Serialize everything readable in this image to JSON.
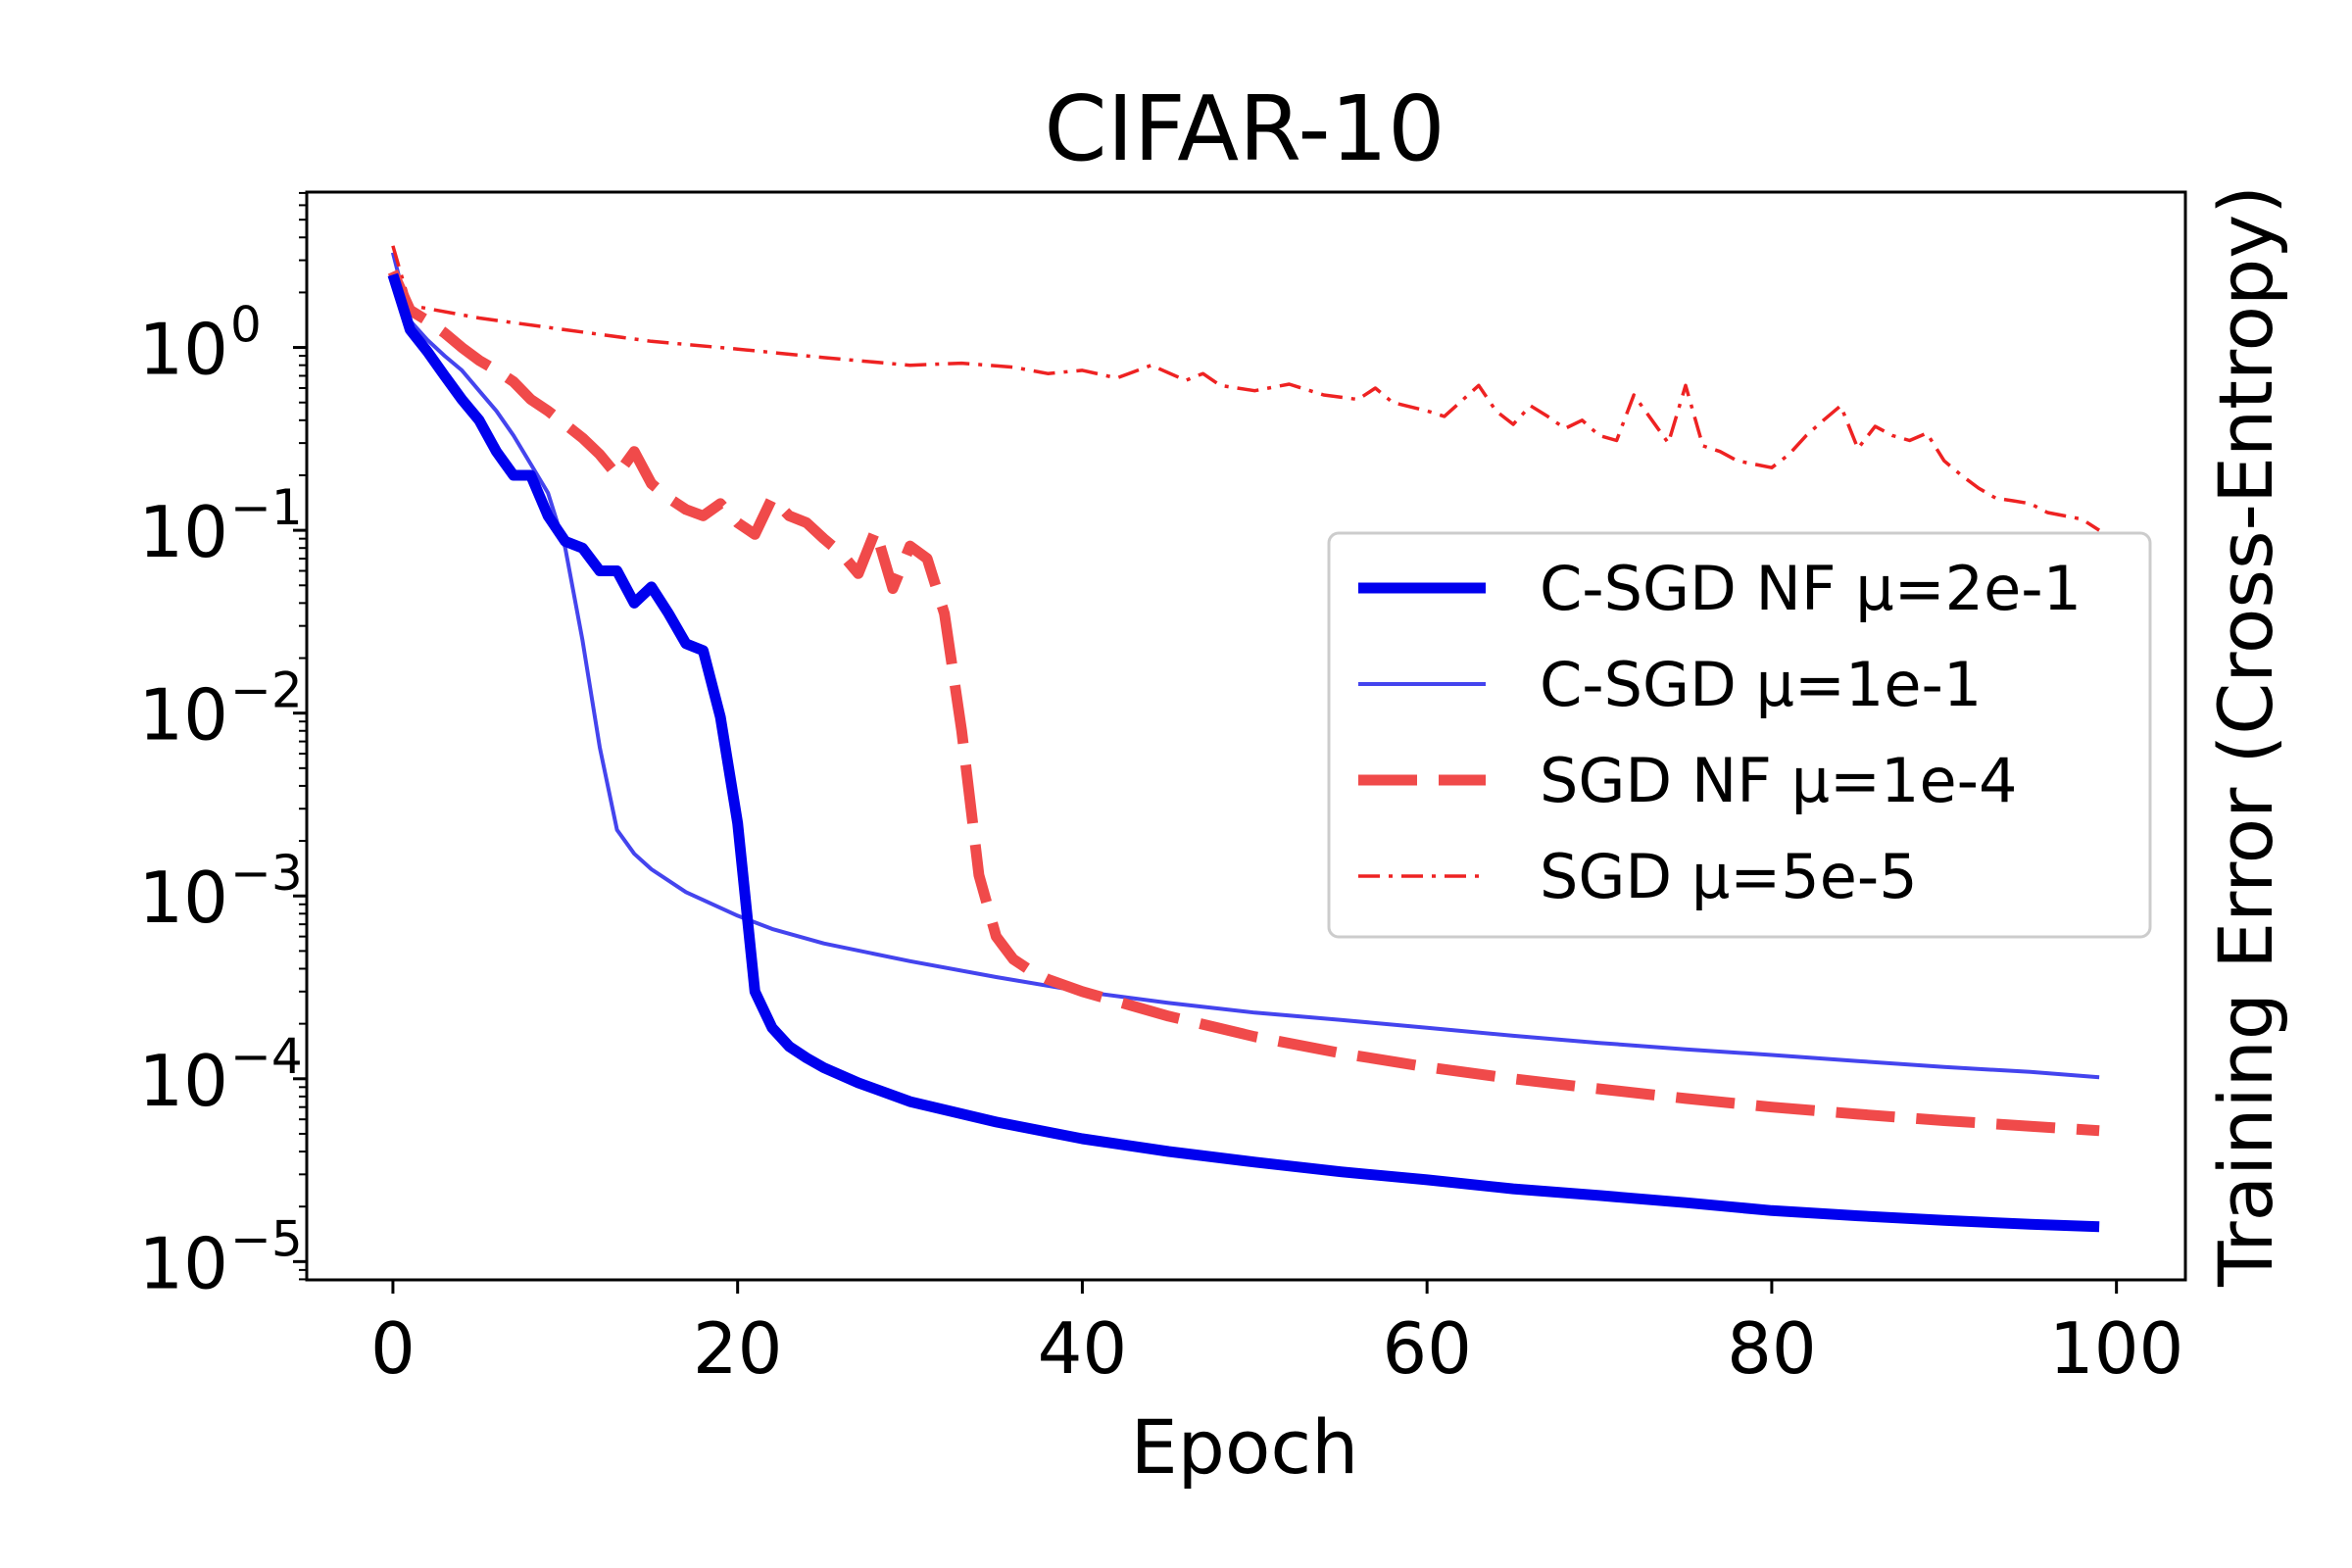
{
  "chart_data": {
    "type": "line",
    "title": "CIFAR-10",
    "xlabel": "Epoch",
    "ylabel": "Training Error (Cross-Entropy)",
    "xlim": [
      -5,
      104
    ],
    "ylim_log10": [
      -5.1,
      0.85
    ],
    "y_scale": "log",
    "grid": false,
    "legend_position": "center-right",
    "x_ticks": [
      0,
      20,
      40,
      60,
      80,
      100
    ],
    "y_ticks": [
      {
        "exp": 0,
        "base": "10",
        "sup": "0"
      },
      {
        "exp": -1,
        "base": "10",
        "sup": "−1"
      },
      {
        "exp": -2,
        "base": "10",
        "sup": "−2"
      },
      {
        "exp": -3,
        "base": "10",
        "sup": "−3"
      },
      {
        "exp": -4,
        "base": "10",
        "sup": "−4"
      },
      {
        "exp": -5,
        "base": "10",
        "sup": "−5"
      }
    ],
    "series": [
      {
        "name": "C-SGD NF μ=2e-1",
        "color": "#0000ee",
        "style": "solid-thick",
        "x": [
          0,
          1,
          2,
          3,
          4,
          5,
          6,
          7,
          8,
          9,
          10,
          11,
          12,
          13,
          14,
          15,
          16,
          17,
          18,
          19,
          20,
          21,
          22,
          23,
          24,
          25,
          27,
          30,
          35,
          40,
          45,
          50,
          55,
          60,
          65,
          70,
          75,
          80,
          85,
          90,
          95,
          99
        ],
        "y": [
          2.5,
          1.25,
          0.95,
          0.7,
          0.52,
          0.4,
          0.27,
          0.2,
          0.2,
          0.12,
          0.087,
          0.08,
          0.06,
          0.06,
          0.04,
          0.049,
          0.035,
          0.024,
          0.022,
          0.0095,
          0.0025,
          0.0003,
          0.00019,
          0.00015,
          0.00013,
          0.000115,
          9.5e-05,
          7.5e-05,
          5.8e-05,
          4.7e-05,
          4e-05,
          3.5e-05,
          3.1e-05,
          2.8e-05,
          2.5e-05,
          2.3e-05,
          2.1e-05,
          1.9e-05,
          1.78e-05,
          1.68e-05,
          1.6e-05,
          1.55e-05
        ]
      },
      {
        "name": "C-SGD μ=1e-1",
        "color": "#4444ee",
        "style": "solid-thin",
        "x": [
          0,
          1,
          2,
          3,
          4,
          5,
          6,
          7,
          8,
          9,
          10,
          11,
          12,
          13,
          14,
          15,
          17,
          20,
          22,
          25,
          30,
          35,
          40,
          45,
          50,
          55,
          60,
          65,
          70,
          75,
          80,
          85,
          90,
          95,
          99
        ],
        "y": [
          3.3,
          1.4,
          1.1,
          0.9,
          0.75,
          0.58,
          0.45,
          0.33,
          0.23,
          0.16,
          0.08,
          0.025,
          0.0065,
          0.0023,
          0.0017,
          0.0014,
          0.00105,
          0.00078,
          0.00066,
          0.00055,
          0.00044,
          0.00036,
          0.0003,
          0.00026,
          0.00023,
          0.00021,
          0.00019,
          0.000172,
          0.000157,
          0.000145,
          0.000135,
          0.000125,
          0.000116,
          0.000109,
          0.000102
        ]
      },
      {
        "name": "SGD NF μ=1e-4",
        "color": "#f04a4a",
        "style": "dashed-thick",
        "x": [
          0,
          1,
          2,
          3,
          4,
          5,
          6,
          7,
          8,
          9,
          10,
          11,
          12,
          13,
          14,
          15,
          16,
          17,
          18,
          19,
          20,
          21,
          22,
          23,
          24,
          25,
          26,
          27,
          28,
          29,
          30,
          31,
          32,
          33,
          34,
          35,
          36,
          37,
          38,
          40,
          45,
          50,
          55,
          60,
          65,
          70,
          75,
          80,
          85,
          90,
          95,
          99
        ],
        "y": [
          2.6,
          1.6,
          1.4,
          1.2,
          1.0,
          0.85,
          0.75,
          0.65,
          0.52,
          0.45,
          0.38,
          0.32,
          0.26,
          0.2,
          0.27,
          0.18,
          0.15,
          0.13,
          0.12,
          0.14,
          0.11,
          0.095,
          0.15,
          0.12,
          0.11,
          0.09,
          0.075,
          0.058,
          0.1,
          0.048,
          0.082,
          0.07,
          0.035,
          0.008,
          0.0013,
          0.0006,
          0.00045,
          0.00039,
          0.00035,
          0.0003,
          0.00022,
          0.00017,
          0.000138,
          0.000116,
          0.0001,
          8.8e-05,
          7.8e-05,
          7e-05,
          6.4e-05,
          5.9e-05,
          5.5e-05,
          5.2e-05
        ]
      },
      {
        "name": "SGD μ=5e-5",
        "color": "#ee2222",
        "style": "dashdot-thin",
        "x": [
          0,
          1,
          5,
          10,
          15,
          20,
          25,
          30,
          33,
          36,
          38,
          40,
          42,
          44,
          46,
          47,
          48,
          50,
          52,
          54,
          56,
          57,
          58,
          60,
          61,
          63,
          64,
          65,
          66,
          67,
          68,
          69,
          70,
          71,
          72,
          74,
          75,
          76,
          77,
          78,
          80,
          81,
          82,
          83,
          84,
          85,
          86,
          87,
          88,
          89,
          90,
          91,
          92,
          93,
          94,
          95,
          96,
          97,
          98,
          99
        ],
        "y": [
          3.6,
          1.7,
          1.45,
          1.25,
          1.08,
          0.98,
          0.88,
          0.8,
          0.82,
          0.78,
          0.72,
          0.75,
          0.68,
          0.8,
          0.66,
          0.72,
          0.62,
          0.58,
          0.63,
          0.55,
          0.52,
          0.6,
          0.5,
          0.45,
          0.42,
          0.62,
          0.45,
          0.38,
          0.48,
          0.42,
          0.36,
          0.4,
          0.33,
          0.31,
          0.55,
          0.3,
          0.62,
          0.29,
          0.27,
          0.24,
          0.22,
          0.26,
          0.33,
          0.4,
          0.48,
          0.28,
          0.37,
          0.33,
          0.31,
          0.34,
          0.24,
          0.2,
          0.17,
          0.15,
          0.145,
          0.14,
          0.125,
          0.12,
          0.115,
          0.1
        ]
      }
    ]
  }
}
